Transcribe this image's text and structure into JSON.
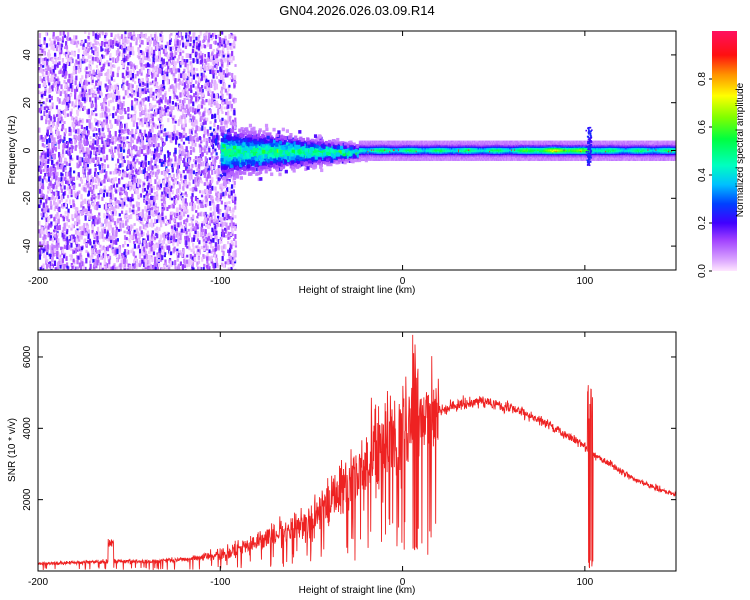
{
  "title": "GN04.2026.026.03.09.R14",
  "chart_data": [
    {
      "type": "heatmap",
      "xlabel": "Height of straight line (km)",
      "ylabel": "Frequency (Hz)",
      "xlim": [
        -200,
        150
      ],
      "ylim": [
        -50,
        50
      ],
      "xticks": [
        -200,
        -100,
        0,
        100
      ],
      "xtick_labels": [
        "-200",
        "-100",
        "0",
        "100"
      ],
      "yticks": [
        -40,
        -20,
        0,
        20,
        40
      ],
      "ytick_labels": [
        "-40",
        "-20",
        "0",
        "20",
        "40"
      ],
      "colorbar": {
        "label": "Normalized spectral amplitude",
        "range": [
          0,
          1
        ],
        "ticks": [
          0.0,
          0.2,
          0.4,
          0.6,
          0.8
        ],
        "tick_labels": [
          "0.0",
          "0.2",
          "0.4",
          "0.6",
          "0.8"
        ],
        "colormap": "gist_rainbow_r"
      },
      "features": {
        "noise_region_x": [
          -200,
          -100
        ],
        "taper_region_x": [
          -100,
          -20
        ],
        "carrier_frequency_hz": 0,
        "carrier_bright_x": [
          60,
          110
        ],
        "spike_x": 102
      }
    },
    {
      "type": "line",
      "xlabel": "Height of straight line (km)",
      "ylabel": "SNR (10 * v/v)",
      "xlim": [
        -200,
        150
      ],
      "ylim": [
        0,
        6700
      ],
      "xticks": [
        -200,
        -100,
        0,
        100
      ],
      "xtick_labels": [
        "-200",
        "-100",
        "0",
        "100"
      ],
      "yticks": [
        2000,
        4000,
        6000
      ],
      "ytick_labels": [
        "2000",
        "4000",
        "6000"
      ],
      "color": "#ee2222",
      "series": [
        {
          "name": "SNR",
          "x": [
            -200,
            -180,
            -160,
            -140,
            -120,
            -100,
            -90,
            -80,
            -70,
            -60,
            -50,
            -40,
            -30,
            -20,
            -10,
            0,
            10,
            20,
            30,
            40,
            50,
            60,
            70,
            80,
            90,
            100,
            104,
            110,
            120,
            130,
            140,
            150
          ],
          "y": [
            200,
            240,
            280,
            260,
            320,
            450,
            600,
            800,
            1000,
            1200,
            1500,
            1900,
            2400,
            3000,
            3500,
            4000,
            4300,
            4500,
            4650,
            4750,
            4700,
            4550,
            4350,
            4100,
            3800,
            3500,
            3300,
            3100,
            2800,
            2500,
            2300,
            2150
          ],
          "annotations": [
            {
              "x": 7,
              "kind": "spike",
              "peak": 6700,
              "dip": 500
            },
            {
              "x": 103,
              "kind": "spike",
              "peak": 5300,
              "dip": 50
            },
            {
              "x": -160,
              "kind": "spike",
              "peak": 900
            }
          ]
        }
      ]
    }
  ]
}
